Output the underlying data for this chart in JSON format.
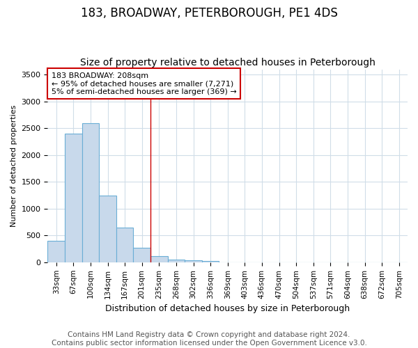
{
  "title": "183, BROADWAY, PETERBOROUGH, PE1 4DS",
  "subtitle": "Size of property relative to detached houses in Peterborough",
  "xlabel": "Distribution of detached houses by size in Peterborough",
  "ylabel": "Number of detached properties",
  "categories": [
    "33sqm",
    "67sqm",
    "100sqm",
    "134sqm",
    "167sqm",
    "201sqm",
    "235sqm",
    "268sqm",
    "302sqm",
    "336sqm",
    "369sqm",
    "403sqm",
    "436sqm",
    "470sqm",
    "504sqm",
    "537sqm",
    "571sqm",
    "604sqm",
    "638sqm",
    "672sqm",
    "705sqm"
  ],
  "bar_values": [
    400,
    2400,
    2600,
    1250,
    650,
    270,
    110,
    55,
    40,
    30,
    0,
    0,
    0,
    0,
    0,
    0,
    0,
    0,
    0,
    0,
    0
  ],
  "bar_color": "#c8d9eb",
  "bar_edge_color": "#6aaed6",
  "vline_x": 5.5,
  "vline_color": "#cc0000",
  "ylim": [
    0,
    3600
  ],
  "yticks": [
    0,
    500,
    1000,
    1500,
    2000,
    2500,
    3000,
    3500
  ],
  "annotation_text": "183 BROADWAY: 208sqm\n← 95% of detached houses are smaller (7,271)\n5% of semi-detached houses are larger (369) →",
  "annotation_box_color": "#ffffff",
  "annotation_box_edge": "#cc0000",
  "footer": "Contains HM Land Registry data © Crown copyright and database right 2024.\nContains public sector information licensed under the Open Government Licence v3.0.",
  "bg_color": "#ffffff",
  "plot_bg_color": "#ffffff",
  "grid_color": "#d0dde8",
  "title_fontsize": 12,
  "subtitle_fontsize": 10,
  "footer_fontsize": 7.5
}
